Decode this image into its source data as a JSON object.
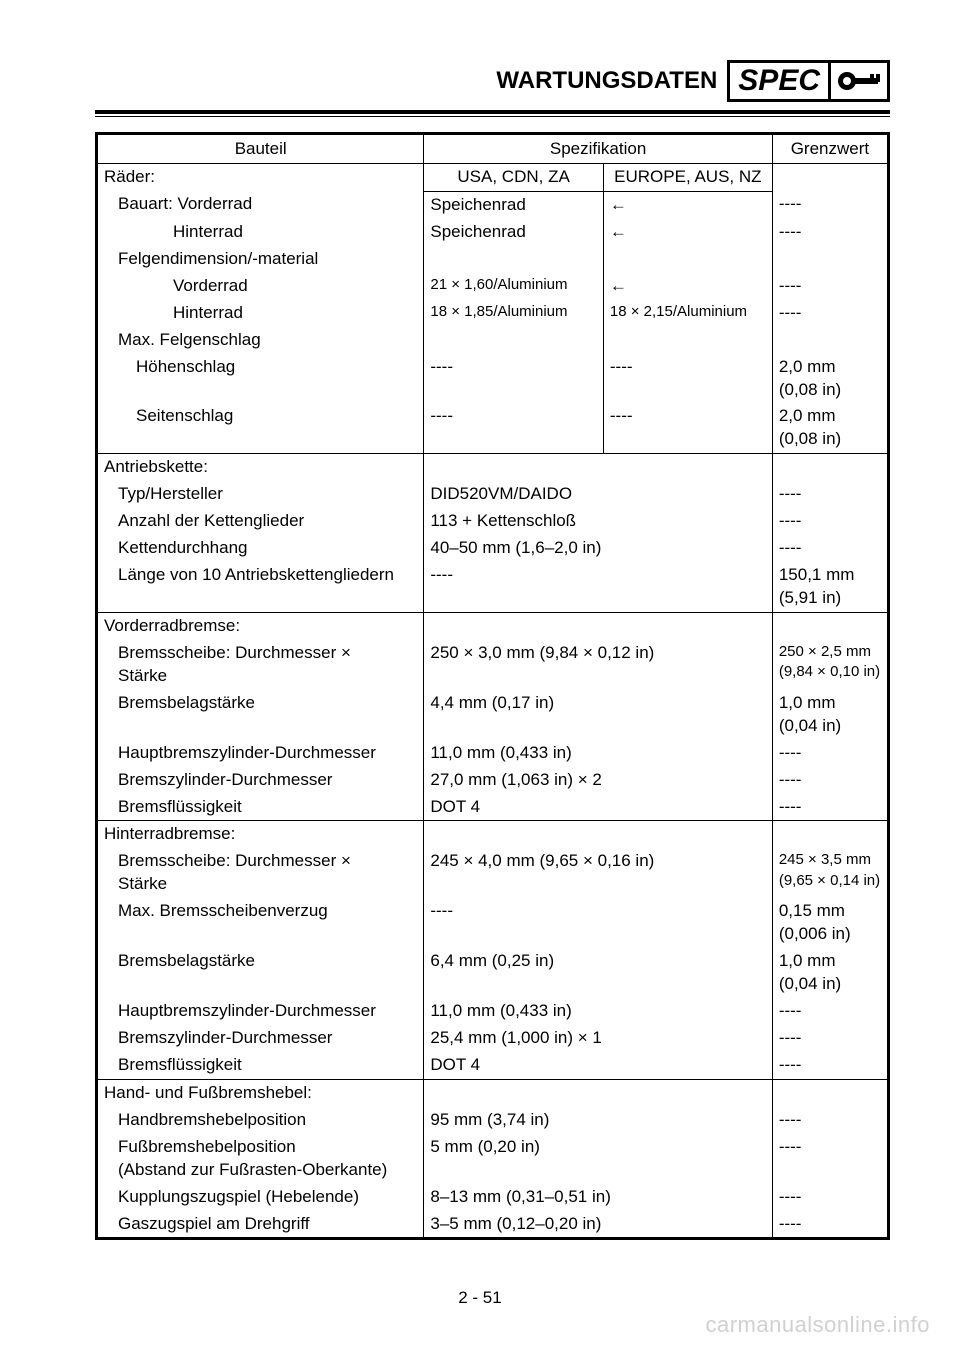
{
  "header": {
    "title": "WARTUNGSDATEN",
    "spec_label": "SPEC"
  },
  "table": {
    "headers": {
      "part": "Bauteil",
      "spec": "Spezifikation",
      "limit": "Grenzwert"
    },
    "sections": [
      {
        "split_spec": true,
        "rows": [
          {
            "part": "Räder:",
            "indent": 0,
            "spec1": "USA, CDN, ZA",
            "spec1_center": true,
            "spec2": "EUROPE, AUS, NZ",
            "spec2_center": true,
            "limit": "",
            "sub_header": true
          },
          {
            "part": "Bauart: Vorderrad",
            "indent": 1,
            "spec1": "Speichenrad",
            "spec2": "←",
            "limit": "----"
          },
          {
            "part": "Hinterrad",
            "indent": 2,
            "spec1": "Speichenrad",
            "spec2": "←",
            "limit": "----"
          },
          {
            "part": "Felgendimension/-material",
            "indent": 1,
            "spec1": "",
            "spec2": "",
            "limit": ""
          },
          {
            "part": "Vorderrad",
            "indent": 2,
            "spec1": "21 × 1,60/Aluminium",
            "spec1_small": true,
            "spec2": "←",
            "limit": "----"
          },
          {
            "part": "Hinterrad",
            "indent": 2,
            "spec1": "18 × 1,85/Aluminium",
            "spec1_small": true,
            "spec2": "18 × 2,15/Aluminium",
            "spec2_small": true,
            "limit": "----"
          },
          {
            "part": "Max. Felgenschlag",
            "indent": 1,
            "spec1": "",
            "spec2": "",
            "limit": ""
          },
          {
            "part": "Höhenschlag",
            "indent": "1b",
            "spec1": "----",
            "spec2": "----",
            "limit": "2,0 mm\n(0,08 in)"
          },
          {
            "part": "Seitenschlag",
            "indent": "1b",
            "spec1": "----",
            "spec2": "----",
            "limit": "2,0 mm\n(0,08 in)"
          }
        ]
      },
      {
        "split_spec": false,
        "rows": [
          {
            "part": "Antriebskette:",
            "indent": 0,
            "spec": "",
            "limit": ""
          },
          {
            "part": "Typ/Hersteller",
            "indent": 1,
            "spec": "DID520VM/DAIDO",
            "limit": "----"
          },
          {
            "part": "Anzahl der Kettenglieder",
            "indent": 1,
            "spec": "113 + Kettenschloß",
            "limit": "----"
          },
          {
            "part": "Kettendurchhang",
            "indent": 1,
            "spec": "40–50 mm (1,6–2,0 in)",
            "limit": "----"
          },
          {
            "part": "Länge von 10 Antriebskettengliedern",
            "indent": 1,
            "spec": "----",
            "limit": "150,1 mm\n(5,91 in)"
          }
        ]
      },
      {
        "split_spec": false,
        "rows": [
          {
            "part": "Vorderradbremse:",
            "indent": 0,
            "spec": "",
            "limit": ""
          },
          {
            "part": "Bremsscheibe: Durchmesser ×\nStärke",
            "indent": 1,
            "spec": "250 × 3,0 mm (9,84 × 0,12 in)",
            "limit": "250 × 2,5 mm\n(9,84 × 0,10 in)",
            "limit_small": true
          },
          {
            "part": "Bremsbelagstärke",
            "indent": 1,
            "spec": "4,4 mm (0,17 in)",
            "limit": "1,0 mm\n(0,04 in)"
          },
          {
            "part": "Hauptbremszylinder-Durchmesser",
            "indent": 1,
            "spec": "11,0 mm (0,433 in)",
            "limit": "----"
          },
          {
            "part": "Bremszylinder-Durchmesser",
            "indent": 1,
            "spec": "27,0 mm (1,063 in) × 2",
            "limit": "----"
          },
          {
            "part": "Bremsflüssigkeit",
            "indent": 1,
            "spec": "DOT 4",
            "limit": "----"
          }
        ]
      },
      {
        "split_spec": false,
        "rows": [
          {
            "part": "Hinterradbremse:",
            "indent": 0,
            "spec": "",
            "limit": ""
          },
          {
            "part": "Bremsscheibe: Durchmesser ×\nStärke",
            "indent": 1,
            "spec": "245 × 4,0 mm (9,65 × 0,16 in)",
            "limit": "245 × 3,5 mm\n(9,65 × 0,14 in)",
            "limit_small": true
          },
          {
            "part": "Max. Bremsscheibenverzug",
            "indent": 1,
            "spec": "----",
            "limit": "0,15 mm\n(0,006 in)"
          },
          {
            "part": "Bremsbelagstärke",
            "indent": 1,
            "spec": "6,4 mm (0,25 in)",
            "limit": "1,0 mm\n(0,04 in)"
          },
          {
            "part": "Hauptbremszylinder-Durchmesser",
            "indent": 1,
            "spec": "11,0 mm (0,433 in)",
            "limit": "----"
          },
          {
            "part": "Bremszylinder-Durchmesser",
            "indent": 1,
            "spec": "25,4 mm (1,000 in) × 1",
            "limit": "----"
          },
          {
            "part": "Bremsflüssigkeit",
            "indent": 1,
            "spec": "DOT 4",
            "limit": "----"
          }
        ]
      },
      {
        "split_spec": false,
        "rows": [
          {
            "part": "Hand- und Fußbremshebel:",
            "indent": 0,
            "spec": "",
            "limit": ""
          },
          {
            "part": "Handbremshebelposition",
            "indent": 1,
            "spec": "95 mm (3,74 in)",
            "limit": "----"
          },
          {
            "part": "Fußbremshebelposition\n(Abstand zur Fußrasten-Oberkante)",
            "indent": 1,
            "spec": "5 mm (0,20 in)",
            "limit": "----"
          },
          {
            "part": "Kupplungszugspiel (Hebelende)",
            "indent": 1,
            "spec": "8–13 mm (0,31–0,51 in)",
            "limit": "----"
          },
          {
            "part": "Gaszugspiel am Drehgriff",
            "indent": 1,
            "spec": "3–5 mm (0,12–0,20 in)",
            "limit": "----"
          }
        ]
      }
    ]
  },
  "page_number": "2 - 51",
  "watermark": "carmanualsonline.info"
}
